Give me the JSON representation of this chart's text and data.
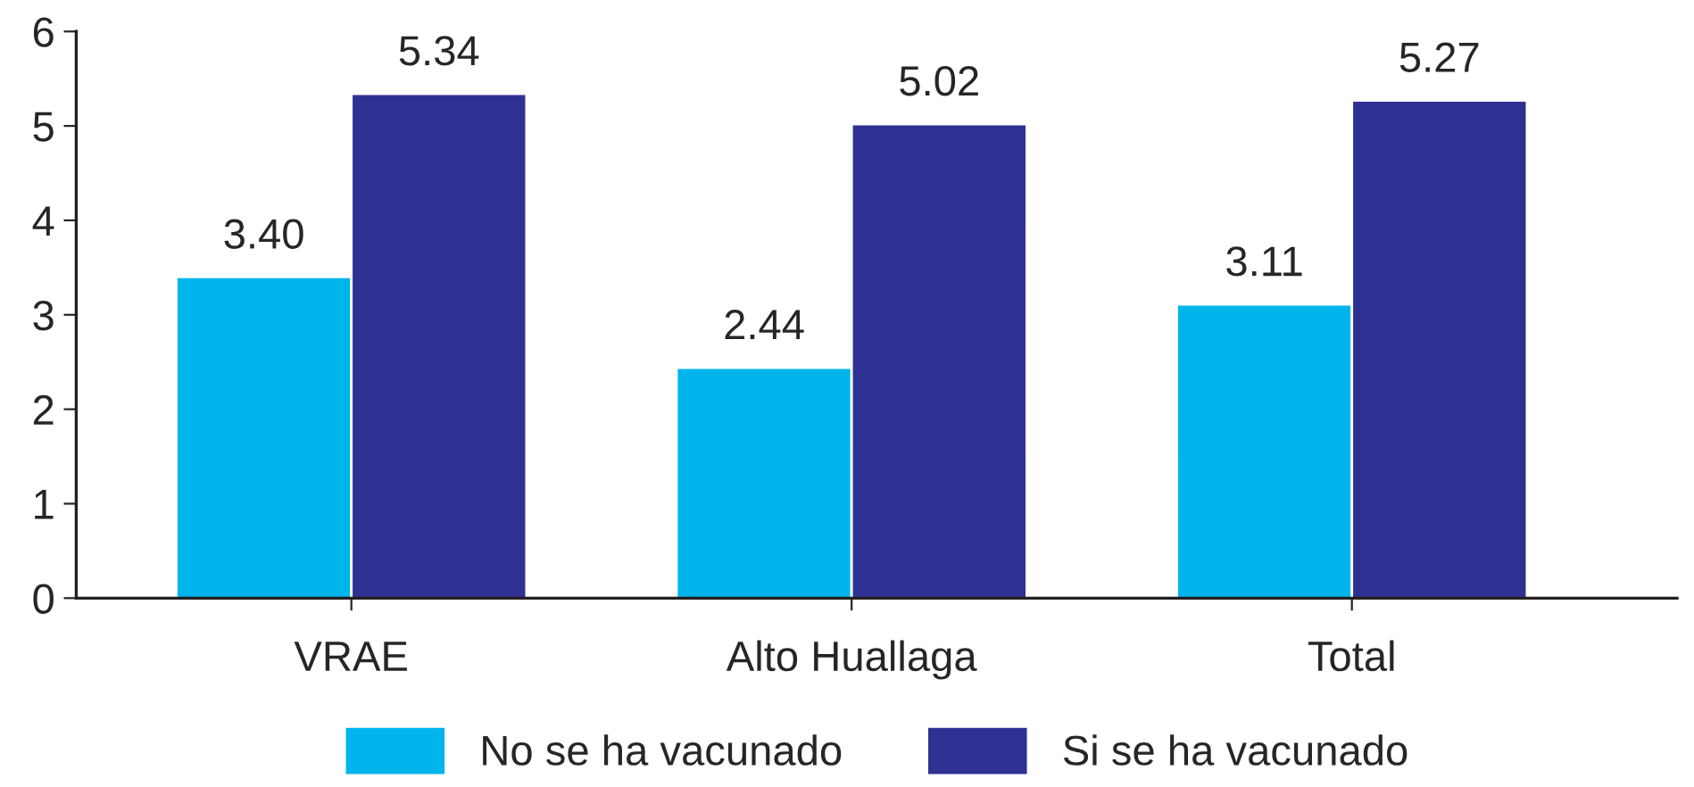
{
  "chart_data": {
    "type": "bar",
    "categories": [
      "VRAE",
      "Alto Huallaga",
      "Total"
    ],
    "series": [
      {
        "name": "No se ha vacunado",
        "color": "#00b4ec",
        "values": [
          3.4,
          2.44,
          3.11
        ],
        "value_labels": [
          "3.40",
          "2.44",
          "3.11"
        ]
      },
      {
        "name": "Si se ha vacunado",
        "color": "#2e3192",
        "values": [
          5.34,
          5.02,
          5.27
        ],
        "value_labels": [
          "5.34",
          "5.02",
          "5.27"
        ]
      }
    ],
    "ylim": [
      0,
      6
    ],
    "yticks": [
      0,
      1,
      2,
      3,
      4,
      5,
      6
    ],
    "grid": false,
    "legend": "bottom"
  }
}
